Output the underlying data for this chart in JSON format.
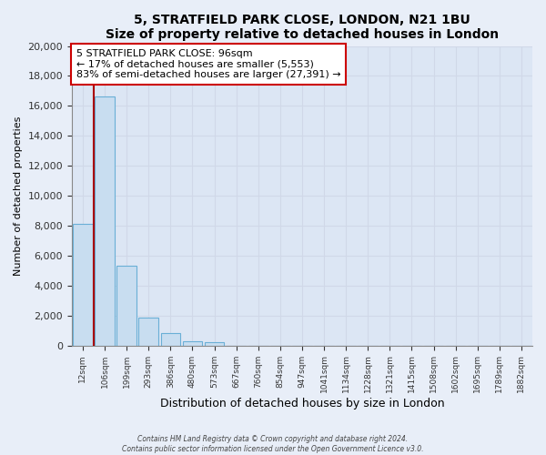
{
  "title": "5, STRATFIELD PARK CLOSE, LONDON, N21 1BU",
  "subtitle": "Size of property relative to detached houses in London",
  "xlabel": "Distribution of detached houses by size in London",
  "ylabel": "Number of detached properties",
  "bar_labels": [
    "12sqm",
    "106sqm",
    "199sqm",
    "293sqm",
    "386sqm",
    "480sqm",
    "573sqm",
    "667sqm",
    "760sqm",
    "854sqm",
    "947sqm",
    "1041sqm",
    "1134sqm",
    "1228sqm",
    "1321sqm",
    "1415sqm",
    "1508sqm",
    "1602sqm",
    "1695sqm",
    "1789sqm",
    "1882sqm"
  ],
  "bar_values": [
    8100,
    16600,
    5300,
    1850,
    800,
    300,
    200,
    0,
    0,
    0,
    0,
    0,
    0,
    0,
    0,
    0,
    0,
    0,
    0,
    0,
    0
  ],
  "bar_color": "#c8ddf0",
  "bar_edge_color": "#6aafd6",
  "property_line_color": "#aa0000",
  "ylim": [
    0,
    20000
  ],
  "yticks": [
    0,
    2000,
    4000,
    6000,
    8000,
    10000,
    12000,
    14000,
    16000,
    18000,
    20000
  ],
  "annotation_title": "5 STRATFIELD PARK CLOSE: 96sqm",
  "annotation_line1": "← 17% of detached houses are smaller (5,553)",
  "annotation_line2": "83% of semi-detached houses are larger (27,391) →",
  "annotation_box_color": "#ffffff",
  "annotation_box_edge": "#cc0000",
  "footer_line1": "Contains HM Land Registry data © Crown copyright and database right 2024.",
  "footer_line2": "Contains public sector information licensed under the Open Government Licence v3.0.",
  "background_color": "#e8eef8",
  "grid_color": "#d0d8e8",
  "plot_bg_color": "#dce6f4"
}
